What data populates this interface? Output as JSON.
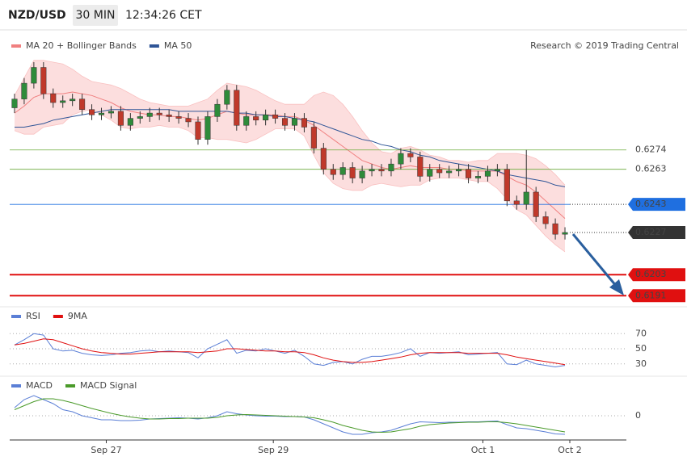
{
  "header": {
    "pair": "NZD/USD",
    "interval": "30 MIN",
    "time": "12:34:26 CET"
  },
  "chart_data": [
    {
      "type": "candlestick",
      "credit": "Research © 2019 Trading Central",
      "xlim": [
        0,
        58
      ],
      "ylim": [
        0.6187,
        0.6341
      ],
      "xticks": [
        {
          "value": 10,
          "label": "Sep 27"
        },
        {
          "value": 27.3,
          "label": "Sep 29"
        },
        {
          "value": 49,
          "label": "Oct 1"
        },
        {
          "value": 58,
          "label": "Oct 2"
        }
      ],
      "candles": {
        "up_color": "#2e8b3a",
        "down_color": "#c0392b",
        "open": [
          0.6298,
          0.6303,
          0.6312,
          0.6321,
          0.6306,
          0.6301,
          0.6302,
          0.6303,
          0.6297,
          0.6294,
          0.6295,
          0.6296,
          0.6288,
          0.6292,
          0.6293,
          0.6295,
          0.6294,
          0.6293,
          0.6292,
          0.629,
          0.628,
          0.6293,
          0.63,
          0.6308,
          0.6288,
          0.6293,
          0.6291,
          0.6294,
          0.6292,
          0.6288,
          0.6292,
          0.6287,
          0.6275,
          0.6263,
          0.626,
          0.6264,
          0.6258,
          0.6262,
          0.6263,
          0.6262,
          0.6266,
          0.6272,
          0.627,
          0.6259,
          0.6263,
          0.6261,
          0.6262,
          0.6263,
          0.6258,
          0.6259,
          0.6262,
          0.6263,
          0.6245,
          0.6243,
          0.625,
          0.6236,
          0.6232,
          0.6226
        ],
        "high": [
          0.6306,
          0.6315,
          0.6324,
          0.6324,
          0.6309,
          0.6305,
          0.6306,
          0.6306,
          0.63,
          0.6298,
          0.6299,
          0.6299,
          0.6295,
          0.6296,
          0.6298,
          0.6298,
          0.6297,
          0.6296,
          0.6295,
          0.6293,
          0.6296,
          0.6303,
          0.6311,
          0.6311,
          0.6296,
          0.6296,
          0.6297,
          0.6297,
          0.6295,
          0.6295,
          0.6295,
          0.629,
          0.6278,
          0.6266,
          0.6267,
          0.6267,
          0.6265,
          0.6266,
          0.6266,
          0.6269,
          0.6275,
          0.6275,
          0.6273,
          0.6266,
          0.6266,
          0.6265,
          0.6266,
          0.6266,
          0.6262,
          0.6265,
          0.6266,
          0.6266,
          0.6248,
          0.6274,
          0.6253,
          0.6239,
          0.6235,
          0.623
        ],
        "low": [
          0.6295,
          0.63,
          0.6309,
          0.6303,
          0.6298,
          0.6298,
          0.6299,
          0.6294,
          0.6291,
          0.6291,
          0.6292,
          0.6285,
          0.6285,
          0.6289,
          0.629,
          0.6291,
          0.629,
          0.6289,
          0.6287,
          0.6277,
          0.6277,
          0.629,
          0.6297,
          0.6285,
          0.6285,
          0.6288,
          0.6288,
          0.6289,
          0.6285,
          0.6285,
          0.6284,
          0.6272,
          0.626,
          0.6257,
          0.6257,
          0.6255,
          0.6255,
          0.6259,
          0.6259,
          0.6259,
          0.6263,
          0.6267,
          0.6256,
          0.6256,
          0.6258,
          0.6258,
          0.6259,
          0.6255,
          0.6255,
          0.6256,
          0.6259,
          0.6242,
          0.624,
          0.624,
          0.6233,
          0.6229,
          0.6223,
          0.6223
        ],
        "close": [
          0.6303,
          0.6312,
          0.6321,
          0.6306,
          0.6301,
          0.6302,
          0.6303,
          0.6297,
          0.6294,
          0.6295,
          0.6296,
          0.6288,
          0.6292,
          0.6293,
          0.6295,
          0.6294,
          0.6293,
          0.6292,
          0.629,
          0.628,
          0.6293,
          0.63,
          0.6308,
          0.6288,
          0.6293,
          0.6291,
          0.6294,
          0.6292,
          0.6288,
          0.6292,
          0.6287,
          0.6275,
          0.6263,
          0.626,
          0.6264,
          0.6258,
          0.6262,
          0.6263,
          0.6262,
          0.6266,
          0.6272,
          0.627,
          0.6259,
          0.6263,
          0.6261,
          0.6262,
          0.6263,
          0.6258,
          0.6259,
          0.6262,
          0.6263,
          0.6245,
          0.6243,
          0.625,
          0.6236,
          0.6232,
          0.6226,
          0.6227
        ]
      },
      "series": [
        {
          "name": "MA 20 + Bollinger Bands",
          "color": "#f08080",
          "values": [
            0.6295,
            0.6299,
            0.6304,
            0.6306,
            0.6306,
            0.6306,
            0.6307,
            0.6306,
            0.6305,
            0.6303,
            0.6301,
            0.6298,
            0.6296,
            0.6295,
            0.6294,
            0.6294,
            0.6293,
            0.6293,
            0.6292,
            0.6291,
            0.6292,
            0.6294,
            0.6296,
            0.6295,
            0.6294,
            0.6294,
            0.6294,
            0.6294,
            0.6293,
            0.6293,
            0.6291,
            0.6288,
            0.6284,
            0.628,
            0.6276,
            0.6272,
            0.6268,
            0.6266,
            0.6264,
            0.6263,
            0.6264,
            0.6265,
            0.6264,
            0.6264,
            0.6264,
            0.6263,
            0.6263,
            0.6262,
            0.6262,
            0.6262,
            0.6262,
            0.6259,
            0.6256,
            0.6254,
            0.625,
            0.6245,
            0.624,
            0.6235
          ],
          "upper": [
            0.6305,
            0.6315,
            0.6325,
            0.6325,
            0.6324,
            0.6323,
            0.632,
            0.6316,
            0.6313,
            0.6312,
            0.6311,
            0.6309,
            0.6306,
            0.6303,
            0.6301,
            0.63,
            0.6299,
            0.6299,
            0.6299,
            0.6301,
            0.6303,
            0.6308,
            0.6312,
            0.6311,
            0.631,
            0.6308,
            0.6305,
            0.6302,
            0.63,
            0.63,
            0.63,
            0.6305,
            0.6307,
            0.6305,
            0.63,
            0.6293,
            0.6285,
            0.6278,
            0.6273,
            0.6272,
            0.6275,
            0.6276,
            0.6274,
            0.6271,
            0.627,
            0.6268,
            0.6268,
            0.6267,
            0.6268,
            0.6268,
            0.6272,
            0.6272,
            0.6272,
            0.6271,
            0.6269,
            0.6265,
            0.626,
            0.6254
          ],
          "lower": [
            0.6285,
            0.6283,
            0.6283,
            0.6287,
            0.6288,
            0.6289,
            0.6294,
            0.6296,
            0.6297,
            0.6294,
            0.6291,
            0.6287,
            0.6286,
            0.6287,
            0.6287,
            0.6288,
            0.6287,
            0.6287,
            0.6285,
            0.6281,
            0.6281,
            0.628,
            0.628,
            0.6279,
            0.6278,
            0.628,
            0.6283,
            0.6286,
            0.6286,
            0.6286,
            0.6282,
            0.6271,
            0.6261,
            0.6255,
            0.6252,
            0.6251,
            0.6251,
            0.6254,
            0.6255,
            0.6254,
            0.6253,
            0.6254,
            0.6254,
            0.6257,
            0.6258,
            0.6258,
            0.6258,
            0.6257,
            0.6256,
            0.6256,
            0.6252,
            0.6246,
            0.624,
            0.6237,
            0.6231,
            0.6225,
            0.622,
            0.6216
          ]
        },
        {
          "name": "MA 50",
          "color": "#2f5597",
          "values": [
            0.6287,
            0.6287,
            0.6288,
            0.6289,
            0.6291,
            0.6292,
            0.6293,
            0.6294,
            0.6295,
            0.6296,
            0.6297,
            0.6297,
            0.6297,
            0.6297,
            0.6297,
            0.6297,
            0.6297,
            0.6296,
            0.6296,
            0.6296,
            0.6296,
            0.6296,
            0.6296,
            0.6295,
            0.6295,
            0.6294,
            0.6294,
            0.6293,
            0.6293,
            0.6292,
            0.6291,
            0.629,
            0.6288,
            0.6286,
            0.6284,
            0.6282,
            0.628,
            0.6279,
            0.6277,
            0.6276,
            0.6274,
            0.6273,
            0.6271,
            0.627,
            0.6268,
            0.6267,
            0.6266,
            0.6265,
            0.6264,
            0.6263,
            0.6262,
            0.626,
            0.6259,
            0.6258,
            0.6257,
            0.6256,
            0.6254,
            0.6253
          ]
        }
      ],
      "levels": [
        {
          "value": 0.6274,
          "color": "#6aaa3a",
          "line": "solid",
          "badge": false
        },
        {
          "value": 0.6263,
          "color": "#6aaa3a",
          "line": "solid",
          "badge": false
        },
        {
          "value": 0.6243,
          "color": "#1f6fe0",
          "line": "solid-dotted",
          "badge": true
        },
        {
          "value": 0.6227,
          "color": "#333333",
          "line": "dotted",
          "badge": true
        },
        {
          "value": 0.6203,
          "color": "#e01010",
          "line": "thick",
          "badge": true
        },
        {
          "value": 0.6191,
          "color": "#e01010",
          "line": "thick",
          "badge": true
        }
      ]
    },
    {
      "type": "line",
      "xlim": [
        0,
        58
      ],
      "ylim": [
        18,
        82
      ],
      "yticks": [
        30,
        50,
        70
      ],
      "grid": true,
      "series": [
        {
          "name": "RSI",
          "color": "#5b7fd6",
          "values": [
            55,
            62,
            70,
            68,
            50,
            47,
            48,
            44,
            42,
            41,
            42,
            44,
            45,
            47,
            48,
            46,
            47,
            46,
            45,
            38,
            50,
            56,
            62,
            44,
            48,
            47,
            50,
            47,
            44,
            48,
            40,
            30,
            28,
            32,
            33,
            30,
            36,
            40,
            40,
            42,
            45,
            50,
            40,
            45,
            44,
            45,
            46,
            42,
            43,
            44,
            45,
            30,
            29,
            35,
            30,
            28,
            26,
            28
          ]
        },
        {
          "name": "9MA",
          "color": "#e01010",
          "values": [
            55,
            57,
            60,
            63,
            62,
            58,
            54,
            50,
            47,
            45,
            44,
            43,
            43,
            44,
            45,
            46,
            46,
            46,
            46,
            45,
            46,
            47,
            50,
            50,
            49,
            48,
            47,
            47,
            46,
            46,
            45,
            42,
            38,
            35,
            33,
            32,
            32,
            33,
            35,
            37,
            39,
            42,
            44,
            45,
            45,
            45,
            45,
            44,
            44,
            44,
            44,
            42,
            39,
            37,
            35,
            33,
            31,
            29
          ]
        }
      ]
    },
    {
      "type": "line",
      "xlim": [
        0,
        58
      ],
      "ylim": [
        -0.0006,
        0.0009
      ],
      "yticks": [
        0
      ],
      "grid": true,
      "series": [
        {
          "name": "MACD",
          "color": "#5b7fd6",
          "values": [
            0.0002,
            0.0004,
            0.0005,
            0.0004,
            0.0003,
            0.00015,
            0.0001,
            0,
            -5e-05,
            -0.0001,
            -0.0001,
            -0.00012,
            -0.00012,
            -0.00011,
            -8e-05,
            -7e-05,
            -6e-05,
            -5e-05,
            -6e-05,
            -8e-05,
            -5e-05,
            0,
            0.0001,
            5e-05,
            2e-05,
            0,
            -1e-05,
            -1e-05,
            -2e-05,
            -2e-05,
            -3e-05,
            -0.0001,
            -0.0002,
            -0.0003,
            -0.0004,
            -0.00046,
            -0.00046,
            -0.00042,
            -0.0004,
            -0.00036,
            -0.00028,
            -0.0002,
            -0.00015,
            -0.00016,
            -0.00017,
            -0.00016,
            -0.00016,
            -0.00015,
            -0.00015,
            -0.00014,
            -0.00013,
            -0.00022,
            -0.0003,
            -0.00032,
            -0.00036,
            -0.0004,
            -0.00045,
            -0.00046
          ]
        },
        {
          "name": "MACD Signal",
          "color": "#4a9a2a",
          "values": [
            0.00015,
            0.00025,
            0.00035,
            0.00042,
            0.00042,
            0.00038,
            0.00032,
            0.00025,
            0.00018,
            0.00012,
            6e-05,
            1e-05,
            -3e-05,
            -6e-05,
            -8e-05,
            -8e-05,
            -7e-05,
            -7e-05,
            -6e-05,
            -6e-05,
            -6e-05,
            -4e-05,
            0,
            2e-05,
            3e-05,
            2e-05,
            1e-05,
            0,
            -1e-05,
            -2e-05,
            -3e-05,
            -5e-05,
            -0.0001,
            -0.00016,
            -0.00024,
            -0.0003,
            -0.00036,
            -0.0004,
            -0.00041,
            -0.0004,
            -0.00036,
            -0.00032,
            -0.00026,
            -0.00022,
            -0.0002,
            -0.00018,
            -0.00017,
            -0.00016,
            -0.00016,
            -0.00015,
            -0.00015,
            -0.00017,
            -0.0002,
            -0.00024,
            -0.00028,
            -0.00032,
            -0.00036,
            -0.0004
          ]
        }
      ]
    }
  ]
}
